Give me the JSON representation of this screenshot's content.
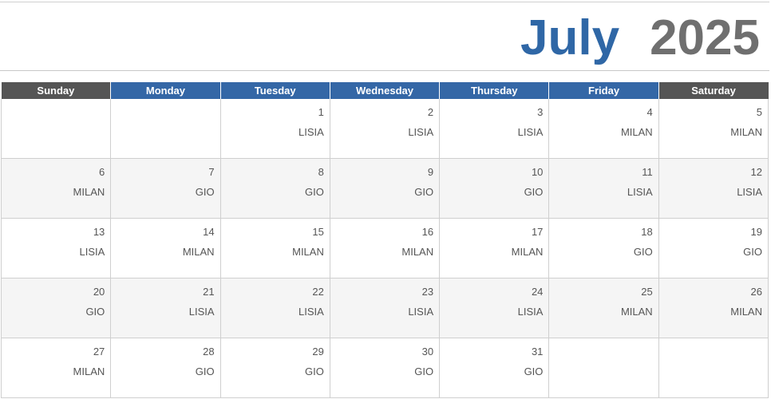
{
  "header": {
    "month": "July",
    "year": "2025"
  },
  "weekdays": [
    {
      "label": "Sunday",
      "weekend": true
    },
    {
      "label": "Monday",
      "weekend": false
    },
    {
      "label": "Tuesday",
      "weekend": false
    },
    {
      "label": "Wednesday",
      "weekend": false
    },
    {
      "label": "Thursday",
      "weekend": false
    },
    {
      "label": "Friday",
      "weekend": false
    },
    {
      "label": "Saturday",
      "weekend": true
    }
  ],
  "weeks": [
    [
      {
        "day": "",
        "name": ""
      },
      {
        "day": "",
        "name": ""
      },
      {
        "day": "1",
        "name": "LISIA"
      },
      {
        "day": "2",
        "name": "LISIA"
      },
      {
        "day": "3",
        "name": "LISIA"
      },
      {
        "day": "4",
        "name": "MILAN"
      },
      {
        "day": "5",
        "name": "MILAN"
      }
    ],
    [
      {
        "day": "6",
        "name": "MILAN"
      },
      {
        "day": "7",
        "name": "GIO"
      },
      {
        "day": "8",
        "name": "GIO"
      },
      {
        "day": "9",
        "name": "GIO"
      },
      {
        "day": "10",
        "name": "GIO"
      },
      {
        "day": "11",
        "name": "LISIA"
      },
      {
        "day": "12",
        "name": "LISIA"
      }
    ],
    [
      {
        "day": "13",
        "name": "LISIA"
      },
      {
        "day": "14",
        "name": "MILAN"
      },
      {
        "day": "15",
        "name": "MILAN"
      },
      {
        "day": "16",
        "name": "MILAN"
      },
      {
        "day": "17",
        "name": "MILAN"
      },
      {
        "day": "18",
        "name": "GIO"
      },
      {
        "day": "19",
        "name": "GIO"
      }
    ],
    [
      {
        "day": "20",
        "name": "GIO"
      },
      {
        "day": "21",
        "name": "LISIA"
      },
      {
        "day": "22",
        "name": "LISIA"
      },
      {
        "day": "23",
        "name": "LISIA"
      },
      {
        "day": "24",
        "name": "LISIA"
      },
      {
        "day": "25",
        "name": "MILAN"
      },
      {
        "day": "26",
        "name": "MILAN"
      }
    ],
    [
      {
        "day": "27",
        "name": "MILAN"
      },
      {
        "day": "28",
        "name": "GIO"
      },
      {
        "day": "29",
        "name": "GIO"
      },
      {
        "day": "30",
        "name": "GIO"
      },
      {
        "day": "31",
        "name": "GIO"
      },
      {
        "day": "",
        "name": ""
      },
      {
        "day": "",
        "name": ""
      }
    ]
  ],
  "colors": {
    "month": "#2f67a6",
    "year": "#6f6f6f",
    "weekday_header": "#3467a6",
    "weekend_header": "#555555",
    "alt_row": "#f5f5f5"
  }
}
